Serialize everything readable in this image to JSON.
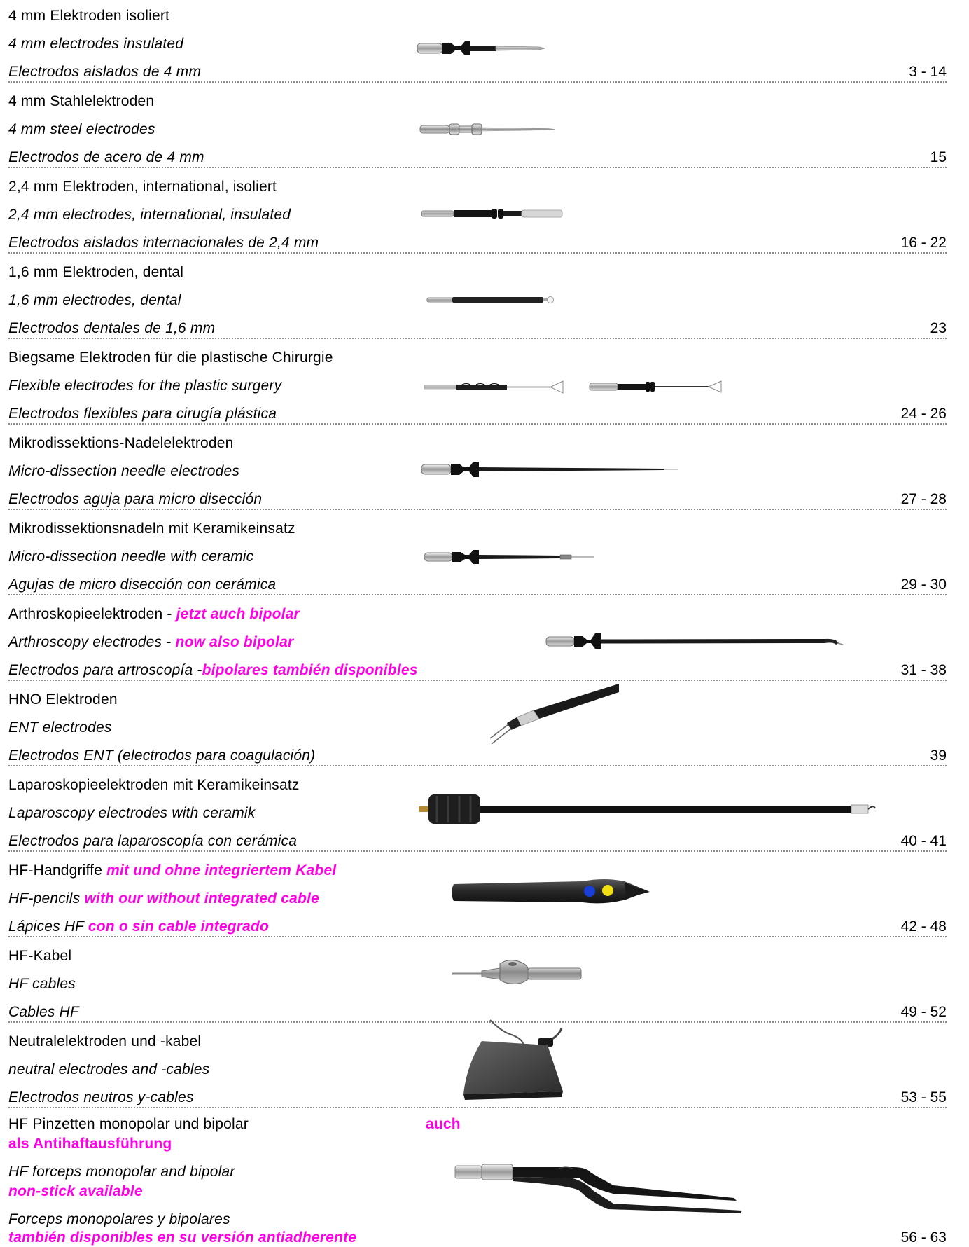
{
  "sections": [
    {
      "de": "4 mm Elektroden isoliert",
      "en": "4 mm electrodes insulated",
      "es": "Electrodos aislados de 4 mm",
      "pages": "3 - 14",
      "image": "insulated-electrode-icon"
    },
    {
      "de": "4 mm Stahlelektroden",
      "en": "4 mm steel electrodes",
      "es": "Electrodos de acero de 4 mm",
      "pages": "15",
      "image": "steel-electrode-icon"
    },
    {
      "de": "2,4 mm Elektroden, international, isoliert",
      "en": "2,4 mm electrodes, international, insulated",
      "es": "Electrodos aislados internacionales de 2,4 mm",
      "pages": "16 - 22",
      "image": "international-electrode-icon"
    },
    {
      "de": "1,6 mm Elektroden, dental",
      "en": "1,6 mm electrodes, dental",
      "es": "Electrodos dentales de 1,6 mm",
      "pages": "23",
      "image": "dental-electrode-icon"
    },
    {
      "de": "Biegsame Elektroden für die plastische Chirurgie",
      "en": "Flexible electrodes for the plastic surgery",
      "es": "Electrodos flexibles para cirugía plástica",
      "pages": "24 - 26",
      "image": "flexible-electrode-icon"
    },
    {
      "de": "Mikrodissektions-Nadelelektroden",
      "en": "Micro-dissection needle electrodes",
      "es": "Electrodos aguja para micro disección",
      "pages": "27 - 28",
      "image": "micro-needle-electrode-icon"
    },
    {
      "de": "Mikrodissektionsnadeln mit Keramikeinsatz",
      "en": "Micro-dissection needle with ceramic",
      "es": "Agujas de micro disección con cerámica",
      "pages": "29 - 30",
      "image": "ceramic-needle-icon"
    },
    {
      "de": "Arthroskopieelektroden - ",
      "de_hl": "jetzt auch bipolar",
      "en": "Arthroscopy electrodes - ",
      "en_hl": "now also bipolar",
      "es": "Electrodos para artroscopía -",
      "es_hl": "bipolares también disponibles",
      "pages": "31 - 38",
      "image": "arthroscopy-electrode-icon"
    },
    {
      "de": "HNO Elektroden",
      "en": "ENT electrodes",
      "es": "Electrodos ENT (electrodos para coagulación)",
      "pages": "39",
      "image": "ent-electrode-icon"
    },
    {
      "de": "Laparoskopieelektroden mit Keramikeinsatz",
      "en": "Laparoscopy electrodes with ceramik",
      "es": "Electrodos para laparoscopía con cerámica",
      "pages": "40 - 41",
      "image": "laparoscopy-electrode-icon"
    },
    {
      "de": "HF-Handgriffe ",
      "de_hl": "mit und ohne integriertem Kabel",
      "en": "HF-pencils ",
      "en_hl": "with our without integrated cable",
      "es": "Lápices HF ",
      "es_hl": "con o sin cable integrado",
      "pages": "42 - 48",
      "image": "hf-pencil-icon"
    },
    {
      "de": "HF-Kabel",
      "en": "HF cables",
      "es": "Cables HF",
      "pages": "49 - 52",
      "image": "hf-cable-icon"
    },
    {
      "de": "Neutralelektroden und -kabel",
      "en": "neutral electrodes and -cables",
      "es": "Electrodos neutros y-cables",
      "pages": "53 - 55",
      "image": "neutral-electrode-icon"
    }
  ],
  "last_section": {
    "de": "HF Pinzetten monopolar und bipolar",
    "de_hl_a": "auch",
    "de_hl_b": "als Antihaftausführung",
    "en": "HF forceps monopolar and bipolar",
    "en_hl": "non-stick available",
    "es": "Forceps monopolares y bipolares",
    "es_hl": "también disponibles en su versión antiadherente",
    "pages": "56 - 63",
    "image": "bipolar-forceps-icon"
  }
}
